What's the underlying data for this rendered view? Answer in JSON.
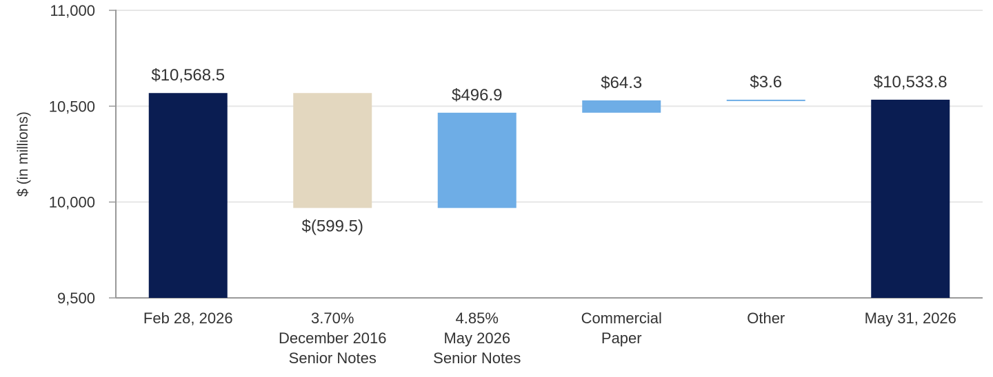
{
  "chart_data": {
    "type": "bar",
    "subtype": "waterfall",
    "ylabel": "$ (in millions)",
    "ylim": [
      9500,
      11000
    ],
    "yticks": [
      "9,500",
      "10,000",
      "10,500",
      "11,000"
    ],
    "grid": true,
    "categories": [
      [
        "Feb 28, 2026"
      ],
      [
        "3.70%",
        "December 2016",
        "Senior Notes"
      ],
      [
        "4.85%",
        "May 2026",
        "Senior Notes"
      ],
      [
        "Commercial",
        "Paper"
      ],
      [
        "Other"
      ],
      [
        "May 31, 2026"
      ]
    ],
    "bars": [
      {
        "kind": "total",
        "start": 0,
        "end": 10568.5,
        "label": "$10,568.5",
        "color": "#0a1d52",
        "label_pos": "top"
      },
      {
        "kind": "decrease",
        "start": 10568.5,
        "end": 9969.0,
        "label": "$(599.5)",
        "color": "#e3d7bf",
        "label_pos": "bottom"
      },
      {
        "kind": "increase",
        "start": 9969.0,
        "end": 10465.9,
        "label": "$496.9",
        "color": "#6eade6",
        "label_pos": "top"
      },
      {
        "kind": "increase",
        "start": 10465.9,
        "end": 10530.2,
        "label": "$64.3",
        "color": "#6eade6",
        "label_pos": "top"
      },
      {
        "kind": "increase",
        "start": 10530.2,
        "end": 10533.8,
        "label": "$3.6",
        "color": "#6eade6",
        "label_pos": "top"
      },
      {
        "kind": "total",
        "start": 0,
        "end": 10533.8,
        "label": "$10,533.8",
        "color": "#0a1d52",
        "label_pos": "top"
      }
    ],
    "colors": {
      "total": "#0a1d52",
      "decrease": "#e3d7bf",
      "increase": "#6eade6",
      "grid": "#e6e6e6",
      "axis": "#999999"
    }
  }
}
